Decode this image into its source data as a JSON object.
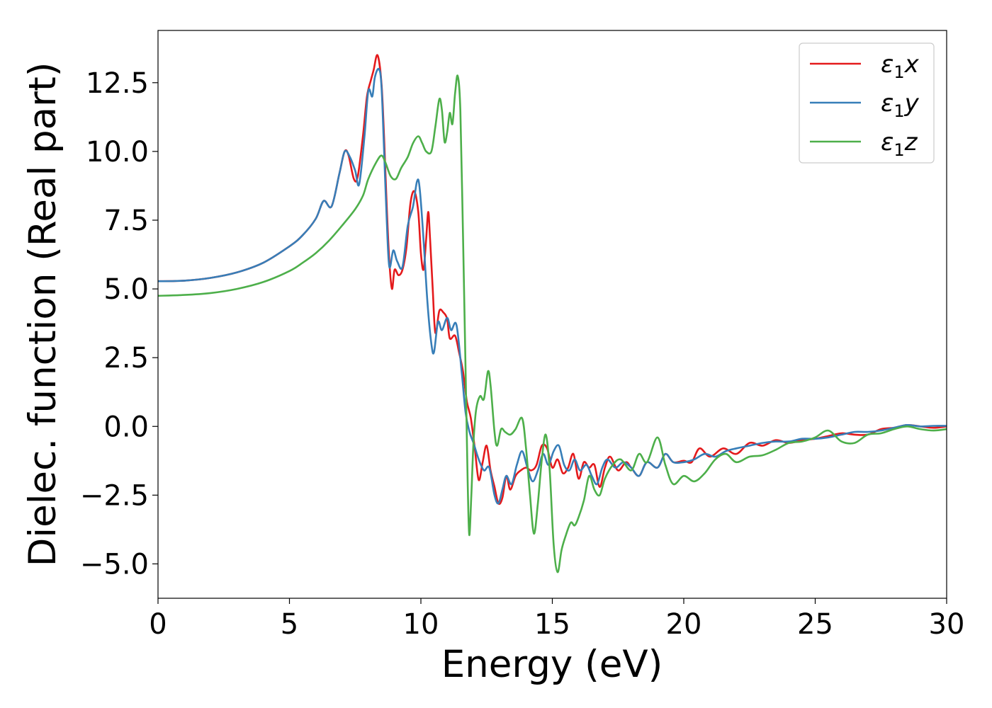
{
  "chart_data": {
    "type": "line",
    "xlabel": "Energy (eV)",
    "ylabel": "Dielec. function (Real part)",
    "xlim": [
      0,
      30
    ],
    "ylim": [
      -6.25,
      14.4
    ],
    "xticks": [
      0,
      5,
      10,
      15,
      20,
      25,
      30
    ],
    "xtick_labels": [
      "0",
      "5",
      "10",
      "15",
      "20",
      "25",
      "30"
    ],
    "yticks": [
      -5.0,
      -2.5,
      0.0,
      2.5,
      5.0,
      7.5,
      10.0,
      12.5
    ],
    "ytick_labels": [
      "−5.0",
      "−2.5",
      "0.0",
      "2.5",
      "5.0",
      "7.5",
      "10.0",
      "12.5"
    ],
    "grid": false,
    "legend_position": "top-right",
    "series": [
      {
        "name": "ε₁x",
        "legend_symbol": "ε",
        "legend_sub": "1",
        "legend_var": "x",
        "color": "#e41a1c",
        "points": [
          [
            0,
            5.28
          ],
          [
            1,
            5.3
          ],
          [
            2,
            5.4
          ],
          [
            3,
            5.6
          ],
          [
            4,
            5.95
          ],
          [
            5,
            6.55
          ],
          [
            5.5,
            6.95
          ],
          [
            6,
            7.55
          ],
          [
            6.3,
            8.2
          ],
          [
            6.6,
            8.0
          ],
          [
            6.9,
            9.2
          ],
          [
            7.1,
            10.0
          ],
          [
            7.25,
            9.85
          ],
          [
            7.45,
            9.0
          ],
          [
            7.6,
            9.1
          ],
          [
            7.8,
            10.6
          ],
          [
            7.95,
            12.0
          ],
          [
            8.1,
            12.6
          ],
          [
            8.2,
            12.95
          ],
          [
            8.35,
            13.5
          ],
          [
            8.5,
            12.5
          ],
          [
            8.6,
            10.5
          ],
          [
            8.7,
            8.0
          ],
          [
            8.8,
            6.0
          ],
          [
            8.9,
            5.0
          ],
          [
            9.0,
            5.7
          ],
          [
            9.15,
            5.5
          ],
          [
            9.3,
            5.7
          ],
          [
            9.45,
            6.5
          ],
          [
            9.6,
            8.1
          ],
          [
            9.75,
            8.55
          ],
          [
            9.9,
            7.8
          ],
          [
            10.0,
            6.3
          ],
          [
            10.1,
            5.7
          ],
          [
            10.2,
            6.8
          ],
          [
            10.28,
            7.8
          ],
          [
            10.35,
            6.8
          ],
          [
            10.45,
            5.0
          ],
          [
            10.55,
            3.4
          ],
          [
            10.7,
            4.2
          ],
          [
            10.85,
            4.15
          ],
          [
            11.0,
            3.9
          ],
          [
            11.1,
            3.2
          ],
          [
            11.3,
            3.3
          ],
          [
            11.45,
            2.7
          ],
          [
            11.6,
            2.0
          ],
          [
            11.75,
            0.9
          ],
          [
            11.9,
            0.3
          ],
          [
            12.05,
            -0.8
          ],
          [
            12.2,
            -1.95
          ],
          [
            12.35,
            -1.3
          ],
          [
            12.5,
            -0.7
          ],
          [
            12.65,
            -1.6
          ],
          [
            12.8,
            -2.2
          ],
          [
            12.95,
            -2.8
          ],
          [
            13.1,
            -2.6
          ],
          [
            13.25,
            -1.8
          ],
          [
            13.4,
            -2.3
          ],
          [
            13.6,
            -1.8
          ],
          [
            13.8,
            -1.6
          ],
          [
            14.0,
            -1.5
          ],
          [
            14.2,
            -1.6
          ],
          [
            14.4,
            -1.4
          ],
          [
            14.6,
            -0.7
          ],
          [
            14.8,
            -0.8
          ],
          [
            15.0,
            -1.5
          ],
          [
            15.2,
            -1.2
          ],
          [
            15.4,
            -1.7
          ],
          [
            15.6,
            -1.5
          ],
          [
            15.8,
            -1.0
          ],
          [
            16.0,
            -1.9
          ],
          [
            16.2,
            -1.3
          ],
          [
            16.4,
            -1.5
          ],
          [
            16.6,
            -1.4
          ],
          [
            16.8,
            -2.2
          ],
          [
            17.0,
            -1.5
          ],
          [
            17.2,
            -1.1
          ],
          [
            17.5,
            -1.6
          ],
          [
            17.8,
            -1.3
          ],
          [
            18.0,
            -1.5
          ],
          [
            18.3,
            -1.8
          ],
          [
            18.6,
            -1.3
          ],
          [
            19.0,
            -1.5
          ],
          [
            19.3,
            -1.0
          ],
          [
            19.6,
            -1.3
          ],
          [
            20.0,
            -1.25
          ],
          [
            20.3,
            -1.3
          ],
          [
            20.6,
            -0.8
          ],
          [
            21.0,
            -1.1
          ],
          [
            21.5,
            -0.8
          ],
          [
            22.0,
            -1.0
          ],
          [
            22.5,
            -0.6
          ],
          [
            23.0,
            -0.7
          ],
          [
            23.5,
            -0.5
          ],
          [
            24.0,
            -0.6
          ],
          [
            24.5,
            -0.5
          ],
          [
            25.0,
            -0.45
          ],
          [
            25.5,
            -0.35
          ],
          [
            26.0,
            -0.25
          ],
          [
            26.5,
            -0.3
          ],
          [
            27.0,
            -0.3
          ],
          [
            27.5,
            -0.1
          ],
          [
            28.0,
            -0.05
          ],
          [
            28.5,
            0.05
          ],
          [
            29.0,
            0.0
          ],
          [
            29.5,
            -0.05
          ],
          [
            30.0,
            0.0
          ]
        ]
      },
      {
        "name": "ε₁y",
        "legend_symbol": "ε",
        "legend_sub": "1",
        "legend_var": "y",
        "color": "#377eb8",
        "points": [
          [
            0,
            5.28
          ],
          [
            1,
            5.3
          ],
          [
            2,
            5.4
          ],
          [
            3,
            5.6
          ],
          [
            4,
            5.95
          ],
          [
            5,
            6.55
          ],
          [
            5.5,
            6.95
          ],
          [
            6,
            7.55
          ],
          [
            6.3,
            8.2
          ],
          [
            6.6,
            8.0
          ],
          [
            6.9,
            9.2
          ],
          [
            7.1,
            10.0
          ],
          [
            7.3,
            9.8
          ],
          [
            7.5,
            9.3
          ],
          [
            7.65,
            8.8
          ],
          [
            7.85,
            10.5
          ],
          [
            8.0,
            12.2
          ],
          [
            8.15,
            12.0
          ],
          [
            8.25,
            12.7
          ],
          [
            8.4,
            13.0
          ],
          [
            8.5,
            12.4
          ],
          [
            8.6,
            10.0
          ],
          [
            8.7,
            7.5
          ],
          [
            8.8,
            5.8
          ],
          [
            8.95,
            6.4
          ],
          [
            9.1,
            6.0
          ],
          [
            9.3,
            5.8
          ],
          [
            9.5,
            7.3
          ],
          [
            9.7,
            8.0
          ],
          [
            9.85,
            8.9
          ],
          [
            9.95,
            8.7
          ],
          [
            10.1,
            6.8
          ],
          [
            10.25,
            4.5
          ],
          [
            10.4,
            3.0
          ],
          [
            10.5,
            2.7
          ],
          [
            10.65,
            3.8
          ],
          [
            10.8,
            3.5
          ],
          [
            11.0,
            3.95
          ],
          [
            11.15,
            3.5
          ],
          [
            11.35,
            3.7
          ],
          [
            11.55,
            2.0
          ],
          [
            11.7,
            0.5
          ],
          [
            11.85,
            -0.2
          ],
          [
            12.0,
            -0.6
          ],
          [
            12.2,
            -1.2
          ],
          [
            12.4,
            -1.6
          ],
          [
            12.6,
            -1.5
          ],
          [
            12.8,
            -2.5
          ],
          [
            12.95,
            -2.8
          ],
          [
            13.1,
            -2.3
          ],
          [
            13.25,
            -1.8
          ],
          [
            13.45,
            -2.1
          ],
          [
            13.65,
            -1.4
          ],
          [
            13.85,
            -0.9
          ],
          [
            14.05,
            -1.5
          ],
          [
            14.25,
            -2.0
          ],
          [
            14.45,
            -1.6
          ],
          [
            14.65,
            -1.0
          ],
          [
            14.85,
            -1.4
          ],
          [
            15.05,
            -0.9
          ],
          [
            15.25,
            -0.7
          ],
          [
            15.45,
            -1.4
          ],
          [
            15.65,
            -1.6
          ],
          [
            15.85,
            -1.2
          ],
          [
            16.05,
            -1.6
          ],
          [
            16.3,
            -1.4
          ],
          [
            16.5,
            -1.8
          ],
          [
            16.7,
            -2.1
          ],
          [
            16.9,
            -1.5
          ],
          [
            17.1,
            -1.2
          ],
          [
            17.4,
            -1.5
          ],
          [
            17.7,
            -1.3
          ],
          [
            18.0,
            -1.5
          ],
          [
            18.3,
            -1.8
          ],
          [
            18.6,
            -1.3
          ],
          [
            19.0,
            -1.5
          ],
          [
            19.3,
            -1.0
          ],
          [
            19.6,
            -1.3
          ],
          [
            20.0,
            -1.3
          ],
          [
            20.4,
            -1.2
          ],
          [
            20.8,
            -1.0
          ],
          [
            21.2,
            -1.1
          ],
          [
            21.6,
            -0.9
          ],
          [
            22.0,
            -0.8
          ],
          [
            22.5,
            -0.7
          ],
          [
            23.0,
            -0.6
          ],
          [
            23.5,
            -0.55
          ],
          [
            24.0,
            -0.55
          ],
          [
            24.5,
            -0.45
          ],
          [
            25.0,
            -0.45
          ],
          [
            25.5,
            -0.4
          ],
          [
            26.0,
            -0.3
          ],
          [
            26.5,
            -0.2
          ],
          [
            27.0,
            -0.2
          ],
          [
            27.5,
            -0.15
          ],
          [
            28.0,
            -0.05
          ],
          [
            28.5,
            0.05
          ],
          [
            29.0,
            0.0
          ],
          [
            29.5,
            0.02
          ],
          [
            30.0,
            0.02
          ]
        ]
      },
      {
        "name": "ε₁z",
        "legend_symbol": "ε",
        "legend_sub": "1",
        "legend_var": "z",
        "color": "#4daf4a",
        "points": [
          [
            0,
            4.75
          ],
          [
            1,
            4.78
          ],
          [
            2,
            4.85
          ],
          [
            3,
            5.0
          ],
          [
            4,
            5.25
          ],
          [
            5,
            5.65
          ],
          [
            5.5,
            5.95
          ],
          [
            6,
            6.3
          ],
          [
            6.5,
            6.75
          ],
          [
            7,
            7.3
          ],
          [
            7.5,
            7.9
          ],
          [
            7.8,
            8.4
          ],
          [
            8.0,
            9.0
          ],
          [
            8.3,
            9.6
          ],
          [
            8.5,
            9.85
          ],
          [
            8.65,
            9.6
          ],
          [
            8.85,
            9.1
          ],
          [
            9.05,
            9.0
          ],
          [
            9.25,
            9.4
          ],
          [
            9.5,
            9.8
          ],
          [
            9.7,
            10.3
          ],
          [
            9.9,
            10.55
          ],
          [
            10.05,
            10.3
          ],
          [
            10.2,
            10.0
          ],
          [
            10.4,
            10.0
          ],
          [
            10.55,
            10.9
          ],
          [
            10.7,
            11.9
          ],
          [
            10.8,
            11.5
          ],
          [
            10.9,
            10.35
          ],
          [
            11.0,
            10.7
          ],
          [
            11.1,
            11.4
          ],
          [
            11.2,
            11.0
          ],
          [
            11.3,
            12.1
          ],
          [
            11.4,
            12.75
          ],
          [
            11.5,
            11.5
          ],
          [
            11.6,
            7.0
          ],
          [
            11.7,
            2.0
          ],
          [
            11.78,
            -2.0
          ],
          [
            11.84,
            -3.95
          ],
          [
            11.92,
            -2.5
          ],
          [
            12.0,
            -0.6
          ],
          [
            12.1,
            0.6
          ],
          [
            12.25,
            1.1
          ],
          [
            12.4,
            1.0
          ],
          [
            12.55,
            2.0
          ],
          [
            12.65,
            1.5
          ],
          [
            12.8,
            -0.2
          ],
          [
            12.9,
            -0.7
          ],
          [
            13.05,
            -0.1
          ],
          [
            13.2,
            -0.2
          ],
          [
            13.4,
            -0.3
          ],
          [
            13.6,
            -0.1
          ],
          [
            13.85,
            0.3
          ],
          [
            14.0,
            -0.8
          ],
          [
            14.15,
            -2.5
          ],
          [
            14.3,
            -3.9
          ],
          [
            14.45,
            -2.8
          ],
          [
            14.6,
            -1.2
          ],
          [
            14.75,
            -0.3
          ],
          [
            14.9,
            -1.6
          ],
          [
            15.05,
            -4.3
          ],
          [
            15.2,
            -5.3
          ],
          [
            15.35,
            -4.5
          ],
          [
            15.5,
            -4.0
          ],
          [
            15.7,
            -3.5
          ],
          [
            15.85,
            -3.6
          ],
          [
            16.0,
            -3.3
          ],
          [
            16.2,
            -2.7
          ],
          [
            16.4,
            -1.8
          ],
          [
            16.6,
            -2.3
          ],
          [
            16.8,
            -2.5
          ],
          [
            17.0,
            -1.9
          ],
          [
            17.3,
            -1.4
          ],
          [
            17.6,
            -1.2
          ],
          [
            18.0,
            -1.6
          ],
          [
            18.3,
            -1.0
          ],
          [
            18.6,
            -1.3
          ],
          [
            19.0,
            -0.4
          ],
          [
            19.3,
            -1.4
          ],
          [
            19.6,
            -2.1
          ],
          [
            20.0,
            -1.8
          ],
          [
            20.4,
            -2.0
          ],
          [
            20.8,
            -1.7
          ],
          [
            21.2,
            -1.2
          ],
          [
            21.6,
            -1.0
          ],
          [
            22.0,
            -1.3
          ],
          [
            22.5,
            -1.1
          ],
          [
            23.0,
            -1.05
          ],
          [
            23.5,
            -0.85
          ],
          [
            24.0,
            -0.6
          ],
          [
            24.5,
            -0.55
          ],
          [
            25.0,
            -0.4
          ],
          [
            25.5,
            -0.15
          ],
          [
            26.0,
            -0.55
          ],
          [
            26.5,
            -0.6
          ],
          [
            27.0,
            -0.3
          ],
          [
            27.5,
            -0.25
          ],
          [
            28.0,
            -0.1
          ],
          [
            28.5,
            0.0
          ],
          [
            29.0,
            -0.1
          ],
          [
            29.5,
            -0.15
          ],
          [
            30.0,
            -0.1
          ]
        ]
      }
    ]
  }
}
